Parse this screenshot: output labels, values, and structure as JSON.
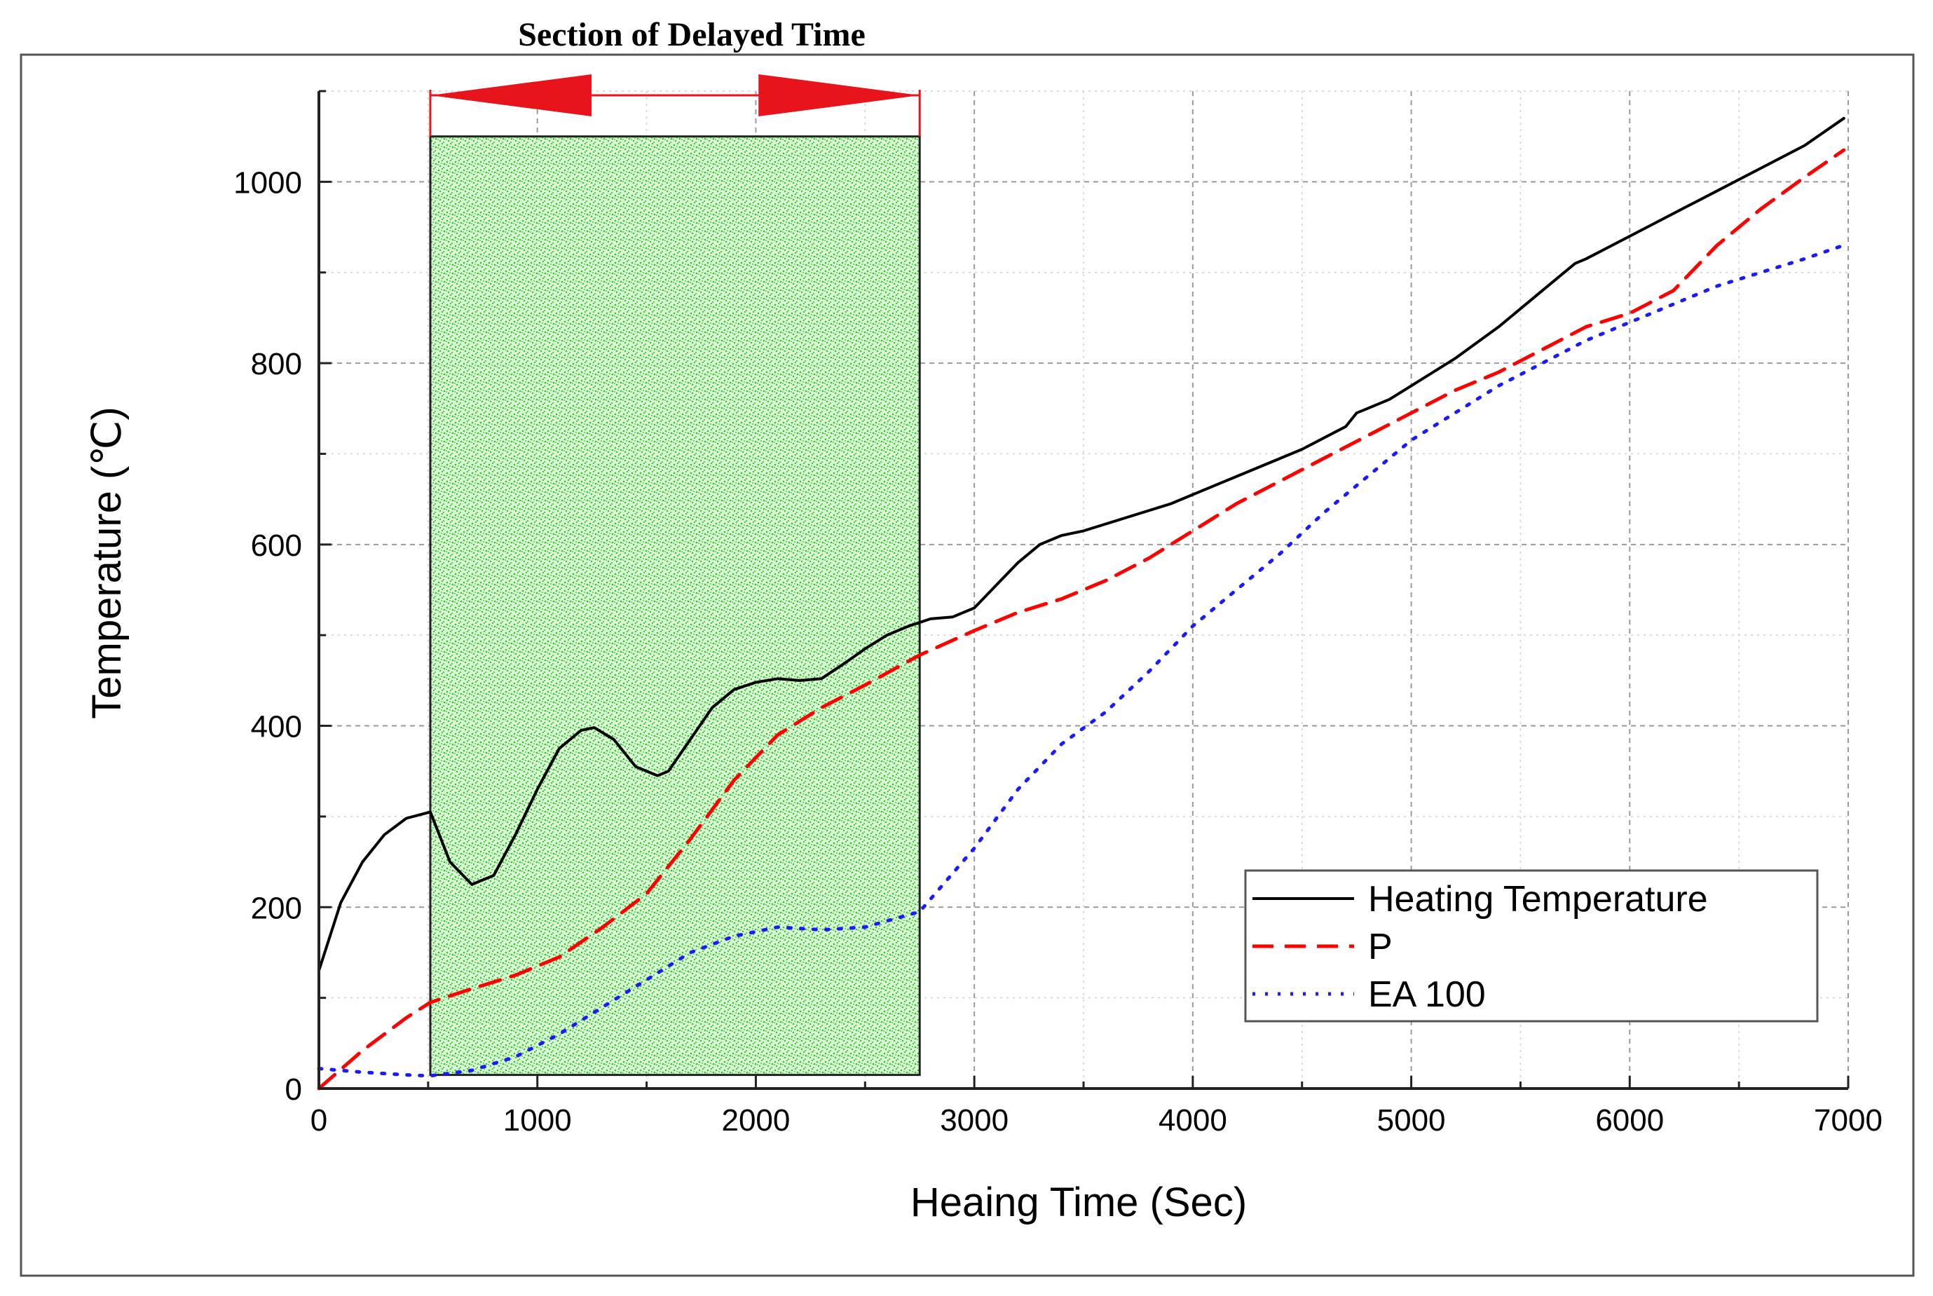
{
  "chart_data": {
    "type": "line",
    "title": "Section of Delayed Time",
    "xlabel": "Heaing Time (Sec)",
    "ylabel": "Temperature (℃)",
    "xlim": [
      0,
      7000
    ],
    "ylim": [
      0,
      1100
    ],
    "xticks": [
      0,
      1000,
      2000,
      3000,
      4000,
      5000,
      6000,
      7000
    ],
    "yticks": [
      0,
      200,
      400,
      600,
      800,
      1000
    ],
    "grid": true,
    "legend_position": "bottom-right",
    "annotation": {
      "label": "Section of Delayed Time",
      "x_start": 510,
      "x_end": 2750,
      "shading_color": "#33cc33",
      "arrow_color": "#e8141c"
    },
    "series": [
      {
        "name": "Heating Temperature",
        "color": "#000000",
        "dash": "solid",
        "x": [
          0,
          100,
          200,
          300,
          400,
          510,
          600,
          700,
          800,
          900,
          1000,
          1100,
          1200,
          1260,
          1350,
          1450,
          1550,
          1600,
          1700,
          1800,
          1900,
          2000,
          2100,
          2200,
          2300,
          2400,
          2500,
          2600,
          2700,
          2800,
          2900,
          3000,
          3100,
          3200,
          3300,
          3400,
          3500,
          3700,
          3900,
          4100,
          4300,
          4500,
          4700,
          4750,
          4800,
          4900,
          5000,
          5200,
          5400,
          5600,
          5750,
          5800,
          6000,
          6200,
          6400,
          6600,
          6800,
          6980
        ],
        "values": [
          130,
          205,
          250,
          280,
          298,
          305,
          250,
          225,
          235,
          280,
          330,
          375,
          395,
          398,
          385,
          355,
          345,
          350,
          385,
          420,
          440,
          448,
          452,
          450,
          452,
          468,
          485,
          500,
          510,
          518,
          520,
          530,
          555,
          580,
          600,
          610,
          615,
          630,
          645,
          665,
          685,
          705,
          730,
          745,
          750,
          760,
          775,
          805,
          840,
          880,
          910,
          915,
          940,
          965,
          990,
          1015,
          1040,
          1070
        ]
      },
      {
        "name": "P",
        "color": "#ff0000",
        "dash": "long-dash",
        "x": [
          0,
          200,
          400,
          510,
          700,
          900,
          1100,
          1300,
          1500,
          1700,
          1900,
          2100,
          2300,
          2500,
          2750,
          3000,
          3200,
          3400,
          3600,
          3800,
          4000,
          4200,
          4400,
          4600,
          4800,
          5000,
          5200,
          5400,
          5600,
          5800,
          6000,
          6200,
          6400,
          6600,
          6800,
          6980
        ],
        "values": [
          0,
          42,
          78,
          95,
          110,
          125,
          145,
          178,
          215,
          275,
          340,
          390,
          420,
          445,
          478,
          505,
          525,
          540,
          560,
          585,
          615,
          645,
          670,
          695,
          720,
          745,
          770,
          790,
          815,
          840,
          855,
          880,
          930,
          970,
          1005,
          1035
        ]
      },
      {
        "name": "EA 100",
        "color": "#1a1aff",
        "dash": "dotted",
        "x": [
          0,
          200,
          400,
          510,
          700,
          900,
          1100,
          1300,
          1500,
          1700,
          1900,
          2100,
          2300,
          2500,
          2750,
          3000,
          3200,
          3400,
          3600,
          3800,
          4000,
          4200,
          4400,
          4600,
          4800,
          5000,
          5200,
          5400,
          5600,
          5800,
          6000,
          6200,
          6400,
          6600,
          6800,
          6980
        ],
        "values": [
          22,
          18,
          15,
          14,
          20,
          35,
          60,
          90,
          120,
          150,
          168,
          178,
          175,
          178,
          195,
          265,
          330,
          380,
          415,
          460,
          510,
          550,
          590,
          635,
          675,
          715,
          745,
          775,
          800,
          825,
          845,
          865,
          885,
          900,
          915,
          930
        ]
      }
    ]
  }
}
